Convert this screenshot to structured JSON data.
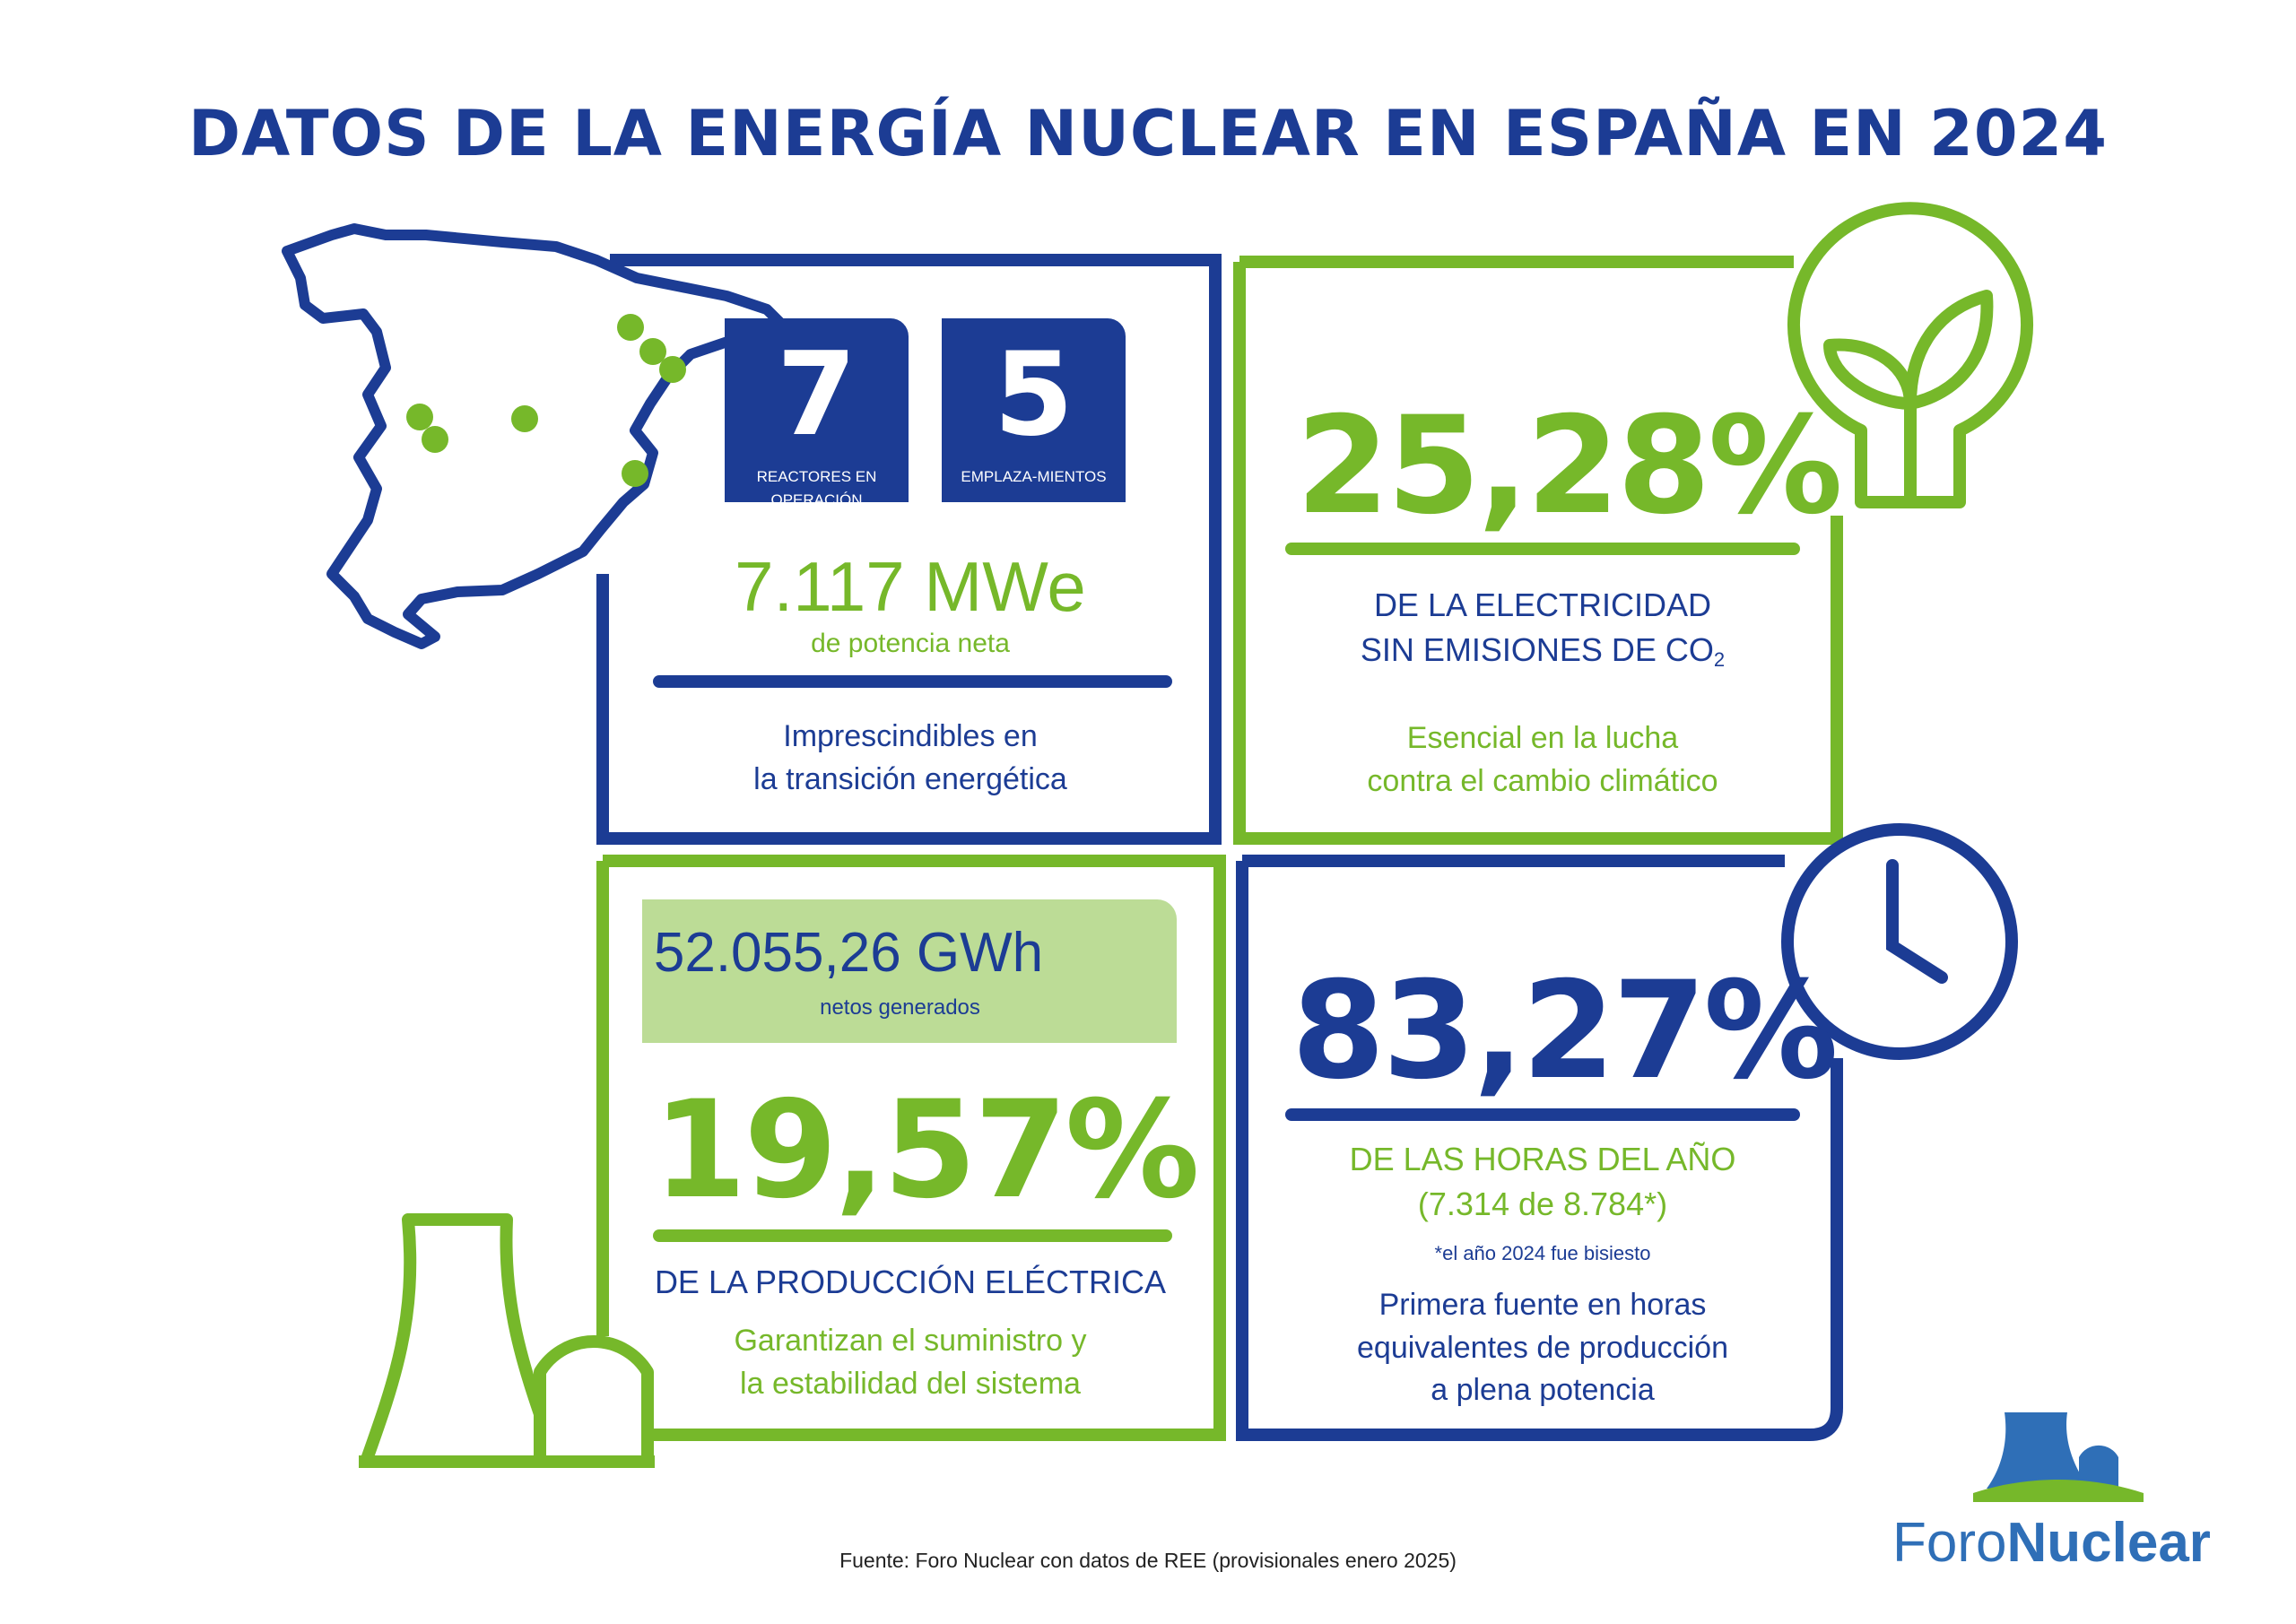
{
  "title": "DATOS DE LA ENERGÍA NUCLEAR EN ESPAÑA EN 2024",
  "reactors": {
    "number": "7",
    "label": "REACTORES EN OPERACIÓN"
  },
  "sites": {
    "number": "5",
    "label": "EMPLAZA-MIENTOS"
  },
  "capacity": {
    "value": "7.117 MWe",
    "label": "de potencia neta",
    "desc_line1": "Imprescindibles en",
    "desc_line2": "la transición energética"
  },
  "emission_free": {
    "value": "25,28%",
    "head_line1": "DE LA ELECTRICIDAD",
    "head_line2": "SIN EMISIONES DE CO",
    "head_sub": "2",
    "desc_line1": "Esencial en la lucha",
    "desc_line2": "contra el cambio climático"
  },
  "generation": {
    "gwh_value": "52.055,26 GWh",
    "gwh_label": "netos generados",
    "value": "19,57%",
    "head": "DE LA PRODUCCIÓN ELÉCTRICA",
    "desc_line1": "Garantizan el suministro y",
    "desc_line2": "la estabilidad del sistema"
  },
  "hours": {
    "value": "83,27%",
    "head_line1": "DE LAS HORAS DEL AÑO",
    "head_line2": "(7.314 de 8.784*)",
    "note": "*el año 2024 fue bisiesto",
    "desc_line1": "Primera fuente en horas",
    "desc_line2": "equivalentes de producción",
    "desc_line3": "a plena potencia"
  },
  "footer": "Fuente: Foro Nuclear con datos de REE (provisionales enero 2025)",
  "brand": {
    "part1": "Foro",
    "part2": "Nuclear"
  },
  "colors": {
    "blue": "#1c3c94",
    "green": "#76b82a",
    "light_green": "#bcdc96",
    "brand_blue": "#2f6fb7"
  },
  "icons": [
    "spain-map-icon",
    "plant-bulb-icon",
    "clock-icon",
    "nuclear-plant-icon",
    "foro-nuclear-logo-icon"
  ]
}
